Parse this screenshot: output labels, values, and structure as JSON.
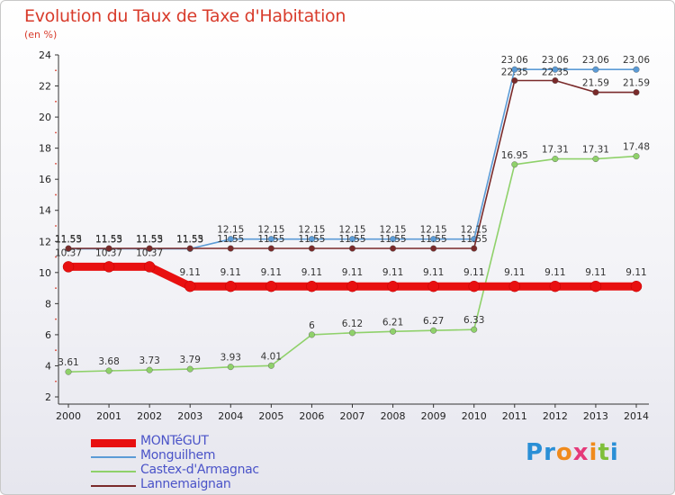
{
  "title": "Evolution du Taux de Taxe d'Habitation",
  "unit": "(en %)",
  "logo": {
    "letters": [
      "P",
      "r",
      "o",
      "x",
      "i",
      "t",
      "i"
    ],
    "colors": [
      "#2a8fd6",
      "#2a8fd6",
      "#f08a1c",
      "#e53a7a",
      "#f08a1c",
      "#7fbf3a",
      "#2a8fd6"
    ]
  },
  "chart_data": {
    "type": "line",
    "title": "Evolution du Taux de Taxe d'Habitation",
    "ylabel": "(en %)",
    "xlabel": "",
    "ylim": [
      2,
      24
    ],
    "yticks": [
      2,
      4,
      6,
      8,
      10,
      12,
      14,
      16,
      18,
      20,
      22,
      24
    ],
    "grid": false,
    "legend_position": "bottom-left",
    "x": [
      "2000",
      "2001",
      "2002",
      "2003",
      "2004",
      "2005",
      "2006",
      "2007",
      "2008",
      "2009",
      "2010",
      "2011",
      "2012",
      "2013",
      "2014"
    ],
    "series": [
      {
        "name": "MONTéGUT",
        "color": "#e81010",
        "values": [
          10.37,
          10.37,
          10.37,
          9.11,
          9.11,
          9.11,
          9.11,
          9.11,
          9.11,
          9.11,
          9.11,
          9.11,
          9.11,
          9.11,
          9.11
        ],
        "labels": [
          "10.37",
          "10.37",
          "10.37",
          "9.11",
          "9.11",
          "9.11",
          "9.11",
          "9.11",
          "9.11",
          "9.11",
          "9.11",
          "9.11",
          "9.11",
          "9.11",
          "9.11"
        ]
      },
      {
        "name": "Monguilhem",
        "color": "#5b9bd6",
        "values": [
          11.53,
          11.53,
          11.53,
          11.53,
          12.15,
          12.15,
          12.15,
          12.15,
          12.15,
          12.15,
          12.15,
          23.06,
          23.06,
          23.06,
          23.06
        ],
        "labels": [
          "11.53",
          "11.53",
          "11.53",
          "11.53",
          "12.15",
          "12.15",
          "12.15",
          "12.15",
          "12.15",
          "12.15",
          "12.15",
          "23.06",
          "23.06",
          "23.06",
          "23.06"
        ]
      },
      {
        "name": "Castex-d'Armagnac",
        "color": "#8fd16a",
        "values": [
          3.61,
          3.68,
          3.73,
          3.79,
          3.93,
          4.01,
          6,
          6.12,
          6.21,
          6.27,
          6.33,
          16.95,
          17.31,
          17.31,
          17.48
        ],
        "labels": [
          "3.61",
          "3.68",
          "3.73",
          "3.79",
          "3.93",
          "4.01",
          "6",
          "6.12",
          "6.21",
          "6.27",
          "6.33",
          "16.95",
          "17.31",
          "17.31",
          "17.48"
        ]
      },
      {
        "name": "Lannemaignan",
        "color": "#7a2a2a",
        "values": [
          11.55,
          11.55,
          11.55,
          11.55,
          11.55,
          11.55,
          11.55,
          11.55,
          11.55,
          11.55,
          11.55,
          22.35,
          22.35,
          21.59,
          21.59
        ],
        "labels": [
          "11.55",
          "11.55",
          "11.55",
          "11.55",
          "11.55",
          "11.55",
          "11.55",
          "11.55",
          "11.55",
          "11.55",
          "11.55",
          "22.35",
          "22.35",
          "21.59",
          "21.59"
        ]
      }
    ]
  }
}
